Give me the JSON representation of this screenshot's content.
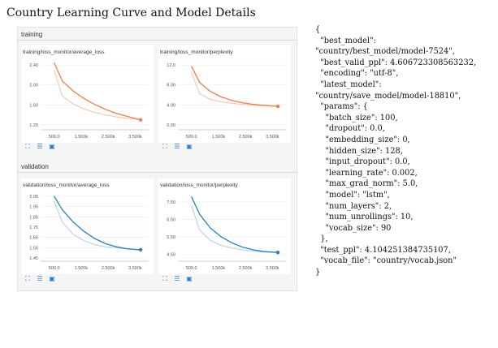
{
  "page_title": "Country Learning Curve and Model Details",
  "sections": [
    {
      "label": "training"
    },
    {
      "label": "validation"
    }
  ],
  "colors": {
    "training_line": "#f07c50",
    "training_smooth": "#f7c9b6",
    "validation_line": "#2d7fb8",
    "validation_smooth": "#b9d4e8"
  },
  "icons": [
    "expand-icon",
    "list-icon",
    "fit-domain-icon"
  ],
  "chart_data": [
    {
      "type": "line",
      "title": "training/loss_monitor/average_loss",
      "x_ticks": [
        "500.0",
        "1.500k",
        "2.500k",
        "3.500k"
      ],
      "y_ticks": [
        "2.40",
        "2.00",
        "1.60",
        "1.20"
      ],
      "xlim": [
        0,
        4000
      ],
      "ylim": [
        1.1,
        2.5
      ],
      "x": [
        500,
        800,
        1200,
        1600,
        2000,
        2400,
        2800,
        3200,
        3700
      ],
      "series": [
        {
          "values": [
            2.45,
            2.08,
            1.88,
            1.73,
            1.61,
            1.51,
            1.43,
            1.37,
            1.3
          ]
        },
        {
          "values": [
            2.3,
            1.78,
            1.62,
            1.52,
            1.45,
            1.4,
            1.36,
            1.33,
            1.3
          ]
        }
      ]
    },
    {
      "type": "line",
      "title": "training/loss_monitor/perplexity",
      "x_ticks": [
        "500.0",
        "1.500k",
        "2.500k",
        "3.500k"
      ],
      "y_ticks": [
        "12.0",
        "8.00",
        "4.00",
        "0.00"
      ],
      "xlim": [
        0,
        4000
      ],
      "ylim": [
        -1.0,
        13.0
      ],
      "x": [
        500,
        800,
        1200,
        1600,
        2000,
        2400,
        2800,
        3200,
        3700
      ],
      "series": [
        {
          "values": [
            11.8,
            8.5,
            6.7,
            5.6,
            4.9,
            4.4,
            4.1,
            3.9,
            3.7
          ]
        },
        {
          "values": [
            10.5,
            6.3,
            5.1,
            4.6,
            4.3,
            4.1,
            3.9,
            3.8,
            3.7
          ]
        }
      ]
    },
    {
      "type": "line",
      "title": "validation/loss_monitor/average_loss",
      "x_ticks": [
        "500.0",
        "1.500k",
        "2.500k",
        "3.500k"
      ],
      "y_ticks": [
        "2.05",
        "1.95",
        "1.85",
        "1.75",
        "1.65",
        "1.55",
        "1.45"
      ],
      "xlim": [
        0,
        4000
      ],
      "ylim": [
        1.42,
        2.08
      ],
      "x": [
        500,
        800,
        1200,
        1600,
        2000,
        2400,
        2800,
        3200,
        3700
      ],
      "series": [
        {
          "values": [
            2.05,
            1.92,
            1.8,
            1.71,
            1.64,
            1.59,
            1.56,
            1.54,
            1.53
          ]
        },
        {
          "values": [
            2.0,
            1.8,
            1.68,
            1.62,
            1.58,
            1.56,
            1.55,
            1.54,
            1.53
          ]
        }
      ]
    },
    {
      "type": "line",
      "title": "validation/loss_monitor/perplexity",
      "x_ticks": [
        "500.0",
        "1.500k",
        "2.500k",
        "3.500k"
      ],
      "y_ticks": [
        "7.50",
        "6.50",
        "5.50",
        "4.50"
      ],
      "xlim": [
        0,
        4000
      ],
      "ylim": [
        4.1,
        8.0
      ],
      "x": [
        500,
        800,
        1200,
        1600,
        2000,
        2400,
        2800,
        3200,
        3700
      ],
      "series": [
        {
          "values": [
            7.8,
            6.8,
            6.0,
            5.5,
            5.15,
            4.9,
            4.75,
            4.65,
            4.6
          ]
        },
        {
          "values": [
            7.3,
            5.9,
            5.3,
            5.0,
            4.85,
            4.75,
            4.68,
            4.63,
            4.6
          ]
        }
      ]
    }
  ],
  "json_text": "{\n  \"best_model\":\n\"country/best_model/model-7524\",\n  \"best_valid_ppl\": 4.606723308563232,\n  \"encoding\": \"utf-8\",\n  \"latest_model\":\n\"country/save_model/model-18810\",\n  \"params\": {\n    \"batch_size\": 100,\n    \"dropout\": 0.0,\n    \"embedding_size\": 0,\n    \"hidden_size\": 128,\n    \"input_dropout\": 0.0,\n    \"learning_rate\": 0.002,\n    \"max_grad_norm\": 5.0,\n    \"model\": \"lstm\",\n    \"num_layers\": 2,\n    \"num_unrollings\": 10,\n    \"vocab_size\": 90\n  },\n  \"test_ppl\": 4.104251384735107,\n  \"vocab_file\": \"country/vocab.json\"\n}"
}
